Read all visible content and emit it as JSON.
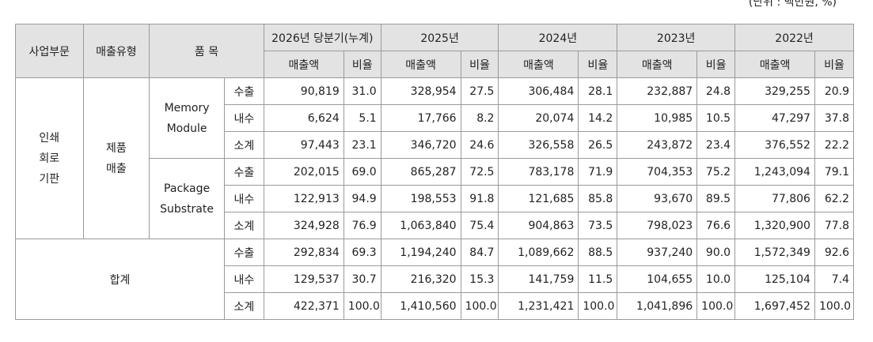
{
  "unit_note": "(단위 : 백만원, %)",
  "header": {
    "segment": "사업부문",
    "sales_type": "매출유형",
    "item": "품 목",
    "periods": [
      "2026년 당분기(누계)",
      "2025년",
      "2024년",
      "2023년",
      "2022년"
    ],
    "sales_label": "매출액",
    "ratio_label": "비율"
  },
  "segment_name": "인쇄\n회로\n기판",
  "sales_type_name": "제품\n매출",
  "total_label": "합계",
  "products": [
    {
      "name": "Memory\nModule",
      "rows": [
        {
          "label": "수출",
          "values": [
            "90,819",
            "31.0",
            "328,954",
            "27.5",
            "306,484",
            "28.1",
            "232,887",
            "24.8",
            "329,255",
            "20.9"
          ]
        },
        {
          "label": "내수",
          "values": [
            "6,624",
            "5.1",
            "17,766",
            "8.2",
            "20,074",
            "14.2",
            "10,985",
            "10.5",
            "47,297",
            "37.8"
          ]
        },
        {
          "label": "소계",
          "values": [
            "97,443",
            "23.1",
            "346,720",
            "24.6",
            "326,558",
            "26.5",
            "243,872",
            "23.4",
            "376,552",
            "22.2"
          ]
        }
      ]
    },
    {
      "name": "Package\nSubstrate",
      "rows": [
        {
          "label": "수출",
          "values": [
            "202,015",
            "69.0",
            "865,287",
            "72.5",
            "783,178",
            "71.9",
            "704,353",
            "75.2",
            "1,243,094",
            "79.1"
          ]
        },
        {
          "label": "내수",
          "values": [
            "122,913",
            "94.9",
            "198,553",
            "91.8",
            "121,685",
            "85.8",
            "93,670",
            "89.5",
            "77,806",
            "62.2"
          ]
        },
        {
          "label": "소계",
          "values": [
            "324,928",
            "76.9",
            "1,063,840",
            "75.4",
            "904,863",
            "73.5",
            "798,023",
            "76.6",
            "1,320,900",
            "77.8"
          ]
        }
      ]
    }
  ],
  "totals": [
    {
      "label": "수출",
      "values": [
        "292,834",
        "69.3",
        "1,194,240",
        "84.7",
        "1,089,662",
        "88.5",
        "937,240",
        "90.0",
        "1,572,349",
        "92.6"
      ]
    },
    {
      "label": "내수",
      "values": [
        "129,537",
        "30.7",
        "216,320",
        "15.3",
        "141,759",
        "11.5",
        "104,655",
        "10.0",
        "125,104",
        "7.4"
      ]
    },
    {
      "label": "소계",
      "values": [
        "422,371",
        "100.0",
        "1,410,560",
        "100.0",
        "1,231,421",
        "100.0",
        "1,041,896",
        "100.0",
        "1,697,452",
        "100.0"
      ]
    }
  ]
}
